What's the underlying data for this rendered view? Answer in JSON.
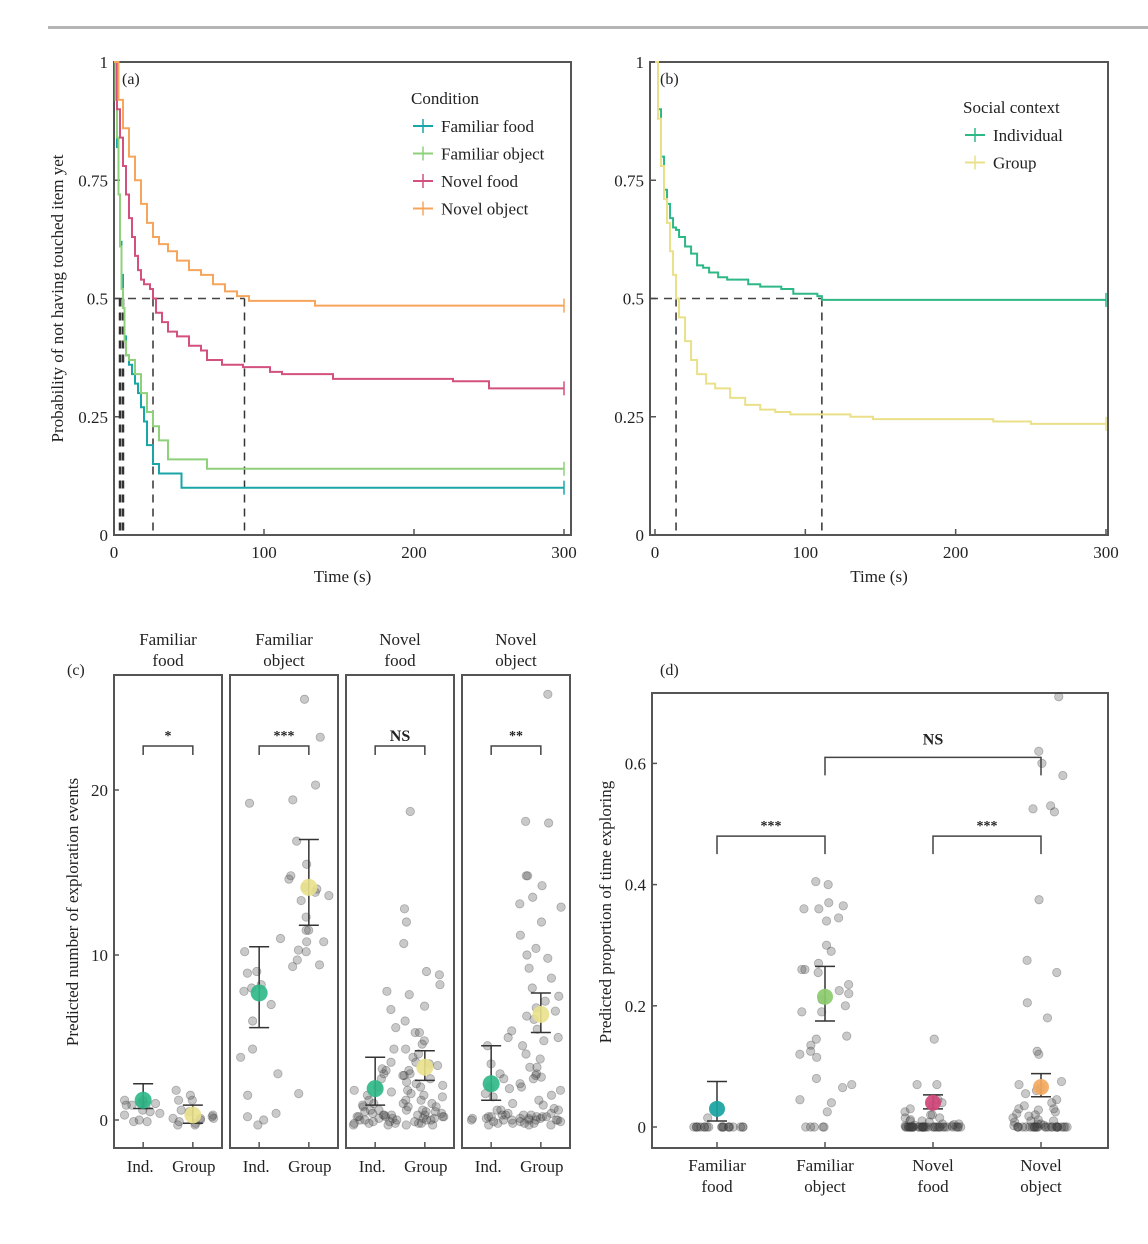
{
  "chart_data": [
    {
      "panel": "(a)",
      "type": "line",
      "subtype": "kaplan-meier step",
      "title": "",
      "xlabel": "Time (s)",
      "ylabel": "Probability of not having touched item yet",
      "xlim": [
        0,
        300
      ],
      "ylim": [
        0,
        1
      ],
      "xticks": [
        "0",
        "100",
        "200",
        "300"
      ],
      "yticks": [
        "0",
        "0.25",
        "0.5",
        "0.75",
        "1"
      ],
      "grid": false,
      "legend": {
        "title": "Condition",
        "placement": "top-right"
      },
      "median_reference": {
        "y": 0.5,
        "x_medians": [
          4,
          6,
          26,
          87
        ]
      },
      "series": [
        {
          "name": "Familiar food",
          "color": "#1aa6a6",
          "x": [
            0,
            1,
            2,
            3,
            4,
            5,
            6,
            7,
            8,
            10,
            12,
            14,
            16,
            18,
            20,
            22,
            26,
            30,
            40,
            45,
            300
          ],
          "y": [
            1,
            0.93,
            0.82,
            0.72,
            0.62,
            0.55,
            0.48,
            0.42,
            0.38,
            0.36,
            0.34,
            0.32,
            0.3,
            0.27,
            0.24,
            0.19,
            0.15,
            0.13,
            0.13,
            0.1,
            0.1
          ]
        },
        {
          "name": "Familiar object",
          "color": "#8fd07a",
          "x": [
            0,
            1,
            2,
            3,
            4,
            5,
            6,
            7,
            8,
            10,
            14,
            18,
            22,
            26,
            30,
            36,
            62,
            300
          ],
          "y": [
            1,
            0.92,
            0.84,
            0.72,
            0.61,
            0.52,
            0.48,
            0.41,
            0.38,
            0.37,
            0.34,
            0.3,
            0.26,
            0.23,
            0.2,
            0.16,
            0.14,
            0.14
          ]
        },
        {
          "name": "Novel food",
          "color": "#d2517f",
          "x": [
            0,
            2,
            4,
            6,
            8,
            10,
            12,
            14,
            16,
            18,
            20,
            22,
            24,
            26,
            28,
            32,
            36,
            42,
            50,
            58,
            62,
            72,
            86,
            104,
            112,
            146,
            226,
            250,
            300
          ],
          "y": [
            1,
            0.9,
            0.84,
            0.78,
            0.72,
            0.67,
            0.63,
            0.59,
            0.56,
            0.54,
            0.53,
            0.53,
            0.52,
            0.5,
            0.47,
            0.45,
            0.43,
            0.42,
            0.4,
            0.39,
            0.37,
            0.36,
            0.355,
            0.345,
            0.34,
            0.33,
            0.325,
            0.31,
            0.31
          ]
        },
        {
          "name": "Novel object",
          "color": "#f6a55c",
          "x": [
            0,
            3,
            6,
            10,
            14,
            18,
            22,
            26,
            30,
            36,
            42,
            50,
            58,
            66,
            74,
            82,
            90,
            134,
            300
          ],
          "y": [
            1,
            0.92,
            0.86,
            0.8,
            0.75,
            0.7,
            0.66,
            0.63,
            0.615,
            0.6,
            0.58,
            0.56,
            0.55,
            0.53,
            0.515,
            0.505,
            0.495,
            0.485,
            0.485
          ]
        }
      ]
    },
    {
      "panel": "(b)",
      "type": "line",
      "subtype": "kaplan-meier step",
      "title": "",
      "xlabel": "Time (s)",
      "ylabel": "",
      "xlim": [
        0,
        300
      ],
      "ylim": [
        0,
        1
      ],
      "xticks": [
        "0",
        "100",
        "200",
        "300"
      ],
      "yticks": [
        "0",
        "0.25",
        "0.5",
        "0.75",
        "1"
      ],
      "grid": false,
      "legend": {
        "title": "Social context",
        "placement": "top-right"
      },
      "median_reference": {
        "y": 0.5,
        "x_medians": [
          14,
          111
        ]
      },
      "series": [
        {
          "name": "Individual",
          "color": "#2eb886",
          "x": [
            0,
            2,
            4,
            6,
            8,
            10,
            12,
            14,
            16,
            20,
            24,
            28,
            32,
            36,
            42,
            48,
            56,
            62,
            70,
            84,
            92,
            100,
            108,
            111,
            300
          ],
          "y": [
            1,
            0.9,
            0.8,
            0.73,
            0.7,
            0.67,
            0.65,
            0.645,
            0.63,
            0.61,
            0.595,
            0.57,
            0.565,
            0.555,
            0.545,
            0.54,
            0.54,
            0.53,
            0.525,
            0.52,
            0.51,
            0.51,
            0.505,
            0.497,
            0.497
          ]
        },
        {
          "name": "Group",
          "color": "#e9e089",
          "x": [
            0,
            2,
            4,
            6,
            8,
            10,
            12,
            14,
            16,
            20,
            24,
            28,
            34,
            40,
            50,
            60,
            70,
            80,
            90,
            110,
            130,
            145,
            225,
            250,
            300
          ],
          "y": [
            1,
            0.88,
            0.78,
            0.71,
            0.66,
            0.6,
            0.55,
            0.5,
            0.46,
            0.41,
            0.37,
            0.34,
            0.32,
            0.31,
            0.29,
            0.275,
            0.265,
            0.26,
            0.255,
            0.255,
            0.25,
            0.245,
            0.24,
            0.235,
            0.235
          ]
        }
      ]
    },
    {
      "panel": "(c)",
      "type": "scatter",
      "subtype": "faceted jitter with mean and error bars",
      "title": "",
      "xlabel": "",
      "ylabel": "Predicted number of exploration events",
      "ylim": [
        -2,
        26
      ],
      "yticks": [
        "0",
        "10",
        "20"
      ],
      "grid": false,
      "facets": [
        {
          "title_line1": "Familiar",
          "title_line2": "food",
          "significance": "*",
          "categories": [
            "Ind.",
            "Group"
          ],
          "means": [
            1.2,
            0.3
          ],
          "ci_low": [
            0.7,
            -0.2
          ],
          "ci_high": [
            2.2,
            0.9
          ],
          "colors": [
            "#2eb886",
            "#e9e089"
          ],
          "points": [
            [
              0.6,
              0.9,
              0.9,
              0.9,
              1.0,
              1.1,
              1.2,
              0.4,
              -0.1,
              0,
              -0.1,
              1.0,
              0.5,
              0.3,
              1.2
            ],
            [
              0.6,
              0.1,
              -0.3,
              -0.2,
              1.2,
              1.2,
              0.1,
              0.2,
              0.1,
              1.8,
              1.5,
              0.3,
              -0.1,
              0.5,
              -0.3,
              0.0
            ]
          ]
        },
        {
          "title_line1": "Familiar",
          "title_line2": "object",
          "significance": "***",
          "categories": [
            "Ind.",
            "Group"
          ],
          "means": [
            7.7,
            14.1
          ],
          "ci_low": [
            5.6,
            11.8
          ],
          "ci_high": [
            10.5,
            17.0
          ],
          "colors": [
            "#2eb886",
            "#e9e089"
          ],
          "points": [
            [
              19.2,
              10.2,
              11.0,
              9.0,
              8.9,
              8.2,
              8.0,
              7.8,
              7.0,
              6.0,
              4.3,
              3.8,
              2.8,
              1.5,
              0.4,
              -0.3,
              0.2,
              0.0
            ],
            [
              25.5,
              23.2,
              20.3,
              19.4,
              16.9,
              15.5,
              14.8,
              14.6,
              14.1,
              14.0,
              13.8,
              13.6,
              13.3,
              12.3,
              11.5,
              11.5,
              10.8,
              10.8,
              10.2,
              10.3,
              9.7,
              9.4,
              9.3,
              1.6
            ]
          ]
        },
        {
          "title_line1": "Novel",
          "title_line2": "food",
          "significance": "NS",
          "categories": [
            "Ind.",
            "Group"
          ],
          "means": [
            1.9,
            3.2
          ],
          "ci_low": [
            0.9,
            2.4
          ],
          "ci_high": [
            3.8,
            4.2
          ],
          "colors": [
            "#2eb886",
            "#e9e089"
          ],
          "points": [
            [
              7.8,
              6.7,
              5.6,
              4.3,
              3.5,
              3.0,
              2.5,
              2.0,
              1.8,
              1.5,
              1.2,
              0.9,
              0.6,
              0.3,
              0.2,
              0.0,
              -0.2,
              -0.3,
              -0.2,
              0.1,
              0.4,
              0.2,
              0.0,
              -0.1,
              0.3,
              0.6,
              1.0,
              0.2,
              -0.3,
              0.1,
              0.5,
              -0.2,
              0.0,
              0.3,
              2.8,
              3.1,
              1.7,
              0.8,
              -0.1
            ],
            [
              18.7,
              12.8,
              12.0,
              10.7,
              9.0,
              8.8,
              8.2,
              7.6,
              6.9,
              6.0,
              5.3,
              4.8,
              4.3,
              4.0,
              3.8,
              3.5,
              3.3,
              3.0,
              2.8,
              2.7,
              2.5,
              2.3,
              2.0,
              1.8,
              1.5,
              1.2,
              1.0,
              0.8,
              0.6,
              0.5,
              0.3,
              0.2,
              0.1,
              0.0,
              -0.1,
              -0.2,
              -0.3,
              0.4,
              0.6,
              1.2,
              1.6,
              2.2,
              2.7,
              3.4,
              4.6,
              5.3,
              0.0,
              0.2,
              0.5,
              -0.2,
              0.8,
              1.4,
              1.0,
              0.3,
              2.1,
              -0.3,
              0.1
            ]
          ]
        },
        {
          "title_line1": "Novel",
          "title_line2": "object",
          "significance": "**",
          "categories": [
            "Ind.",
            "Group"
          ],
          "means": [
            2.2,
            6.4
          ],
          "ci_low": [
            1.2,
            5.3
          ],
          "ci_high": [
            4.5,
            7.7
          ],
          "colors": [
            "#2eb886",
            "#e9e089"
          ],
          "points": [
            [
              5.4,
              5.0,
              4.5,
              3.4,
              2.8,
              2.5,
              1.9,
              1.4,
              1.0,
              0.6,
              0.3,
              0.2,
              0.1,
              0.0,
              -0.1,
              -0.2,
              0.1,
              0.3,
              0.0,
              0.2,
              -0.3,
              0.4,
              0.6,
              0.0,
              1.6,
              2.0,
              -0.2
            ],
            [
              25.8,
              18.1,
              18.0,
              14.8,
              14.8,
              14.2,
              13.5,
              13.1,
              12.9,
              12.0,
              11.2,
              10.4,
              10.0,
              9.8,
              9.2,
              8.6,
              8.0,
              7.5,
              7.2,
              6.8,
              6.6,
              6.3,
              6.1,
              5.5,
              5.0,
              4.8,
              4.5,
              4.0,
              3.7,
              3.2,
              2.8,
              2.6,
              2.5,
              2.2,
              2.0,
              1.5,
              1.2,
              0.9,
              0.6,
              0.3,
              0.2,
              0.1,
              0.0,
              -0.1,
              -0.2,
              -0.3,
              0.0,
              0.1,
              0.2,
              0.3,
              -0.2,
              0.0,
              0.4,
              0.1,
              -0.3,
              0.2,
              0.0,
              -0.1,
              2.7,
              1.8,
              0.7,
              3.2
            ]
          ]
        }
      ]
    },
    {
      "panel": "(d)",
      "type": "scatter",
      "subtype": "jitter with mean and error bars",
      "title": "",
      "xlabel": "",
      "ylabel": "Predicted proportion of time exploring",
      "ylim": [
        -0.035,
        0.71
      ],
      "yticks": [
        "0",
        "0.2",
        "0.4",
        "0.6"
      ],
      "grid": false,
      "categories": [
        {
          "line1": "Familiar",
          "line2": "food"
        },
        {
          "line1": "Familiar",
          "line2": "object"
        },
        {
          "line1": "Novel",
          "line2": "food"
        },
        {
          "line1": "Novel",
          "line2": "object"
        }
      ],
      "means": [
        0.03,
        0.215,
        0.04,
        0.066
      ],
      "ci_low": [
        0.01,
        0.175,
        0.03,
        0.05
      ],
      "ci_high": [
        0.075,
        0.265,
        0.053,
        0.088
      ],
      "colors": [
        "#18a2a2",
        "#8ccc6e",
        "#d0467a",
        "#f4a95e"
      ],
      "significance": [
        {
          "from": 0,
          "to": 1,
          "label": "***",
          "level": 0.48
        },
        {
          "from": 2,
          "to": 3,
          "label": "***",
          "level": 0.48
        },
        {
          "from": 1,
          "to": 3,
          "label": "NS",
          "level": 0.61
        }
      ],
      "points": [
        [
          0.0,
          0.0,
          0.0,
          0.0,
          0.0,
          0.0,
          0.0,
          0.0,
          0.0,
          0.0,
          0.0,
          0.0,
          0.0,
          0.0,
          0.0,
          0.0,
          0.0,
          0.0,
          0.0,
          0.0,
          0.015
        ],
        [
          0.405,
          0.4,
          0.37,
          0.36,
          0.36,
          0.365,
          0.345,
          0.34,
          0.3,
          0.29,
          0.27,
          0.26,
          0.26,
          0.255,
          0.235,
          0.225,
          0.22,
          0.21,
          0.2,
          0.19,
          0.19,
          0.15,
          0.145,
          0.135,
          0.125,
          0.12,
          0.115,
          0.08,
          0.07,
          0.065,
          0.04,
          0.025,
          0.045,
          0.0,
          0.0,
          0.0,
          0.0,
          0.0
        ],
        [
          0.145,
          0.07,
          0.07,
          0.045,
          0.04,
          0.035,
          0.03,
          0.025,
          0.02,
          0.02,
          0.015,
          0.015,
          0.012,
          0.01,
          0.01,
          0.008,
          0.005,
          0.005,
          0.004,
          0.003,
          0.002,
          0.002,
          0.0,
          0.0,
          0.0,
          0.0,
          0.0,
          0.0,
          0.0,
          0.0,
          0.0,
          0.0,
          0.0,
          0.0,
          0.0,
          0.0,
          0.0,
          0.0,
          0.0,
          0.0,
          0.0,
          0.0,
          0.0,
          0.0,
          0.0,
          0.0,
          0.0,
          0.0,
          0.0,
          0.0,
          0.0,
          0.0,
          0.0,
          0.0,
          0.0,
          0.0,
          0.0,
          0.0,
          0.0,
          0.0
        ],
        [
          0.71,
          0.62,
          0.6,
          0.58,
          0.53,
          0.525,
          0.52,
          0.375,
          0.275,
          0.255,
          0.205,
          0.18,
          0.125,
          0.12,
          0.075,
          0.07,
          0.065,
          0.06,
          0.055,
          0.045,
          0.04,
          0.035,
          0.03,
          0.03,
          0.028,
          0.025,
          0.022,
          0.02,
          0.018,
          0.015,
          0.012,
          0.01,
          0.01,
          0.008,
          0.005,
          0.005,
          0.003,
          0.002,
          0.0,
          0.0,
          0.0,
          0.0,
          0.0,
          0.0,
          0.0,
          0.0,
          0.0,
          0.0,
          0.0,
          0.0,
          0.0,
          0.0,
          0.0,
          0.0,
          0.0,
          0.0,
          0.0,
          0.0,
          0.0,
          0.0,
          0.0,
          0.0,
          0.0,
          0.0,
          0.0
        ]
      ]
    }
  ]
}
